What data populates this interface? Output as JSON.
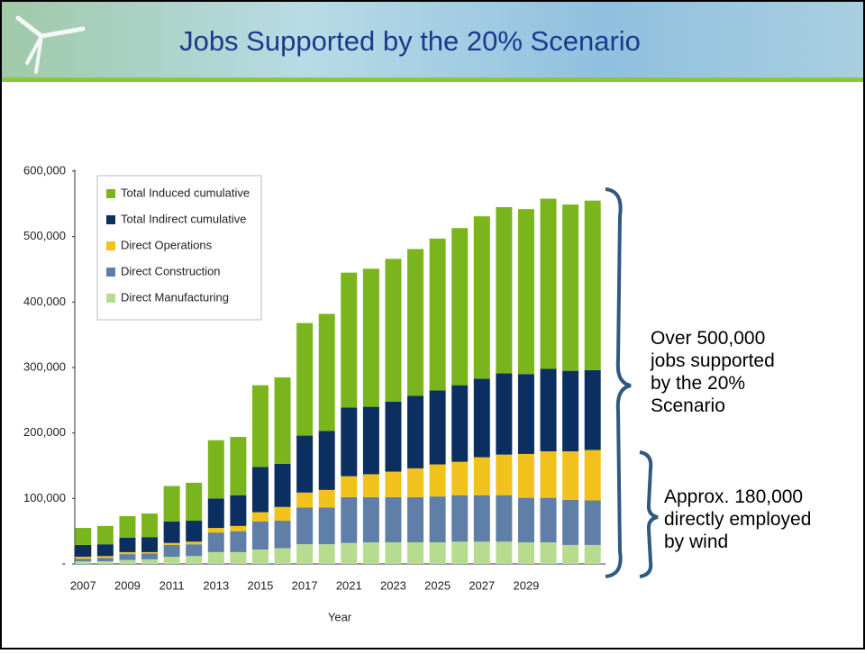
{
  "header": {
    "title": "Jobs Supported by the 20% Scenario"
  },
  "chart_data": {
    "type": "stacked-bar",
    "x_label": "Year",
    "categories": [
      "2007",
      null,
      "2009",
      null,
      "2011",
      null,
      "2013",
      null,
      "2015",
      null,
      "2017",
      null,
      "2021",
      null,
      "2023",
      null,
      "2025",
      null,
      "2027",
      null,
      "2029",
      null,
      null,
      null
    ],
    "series": [
      {
        "name": "Direct Manufacturing",
        "color": "#b7dc8f",
        "values": [
          4000,
          4000,
          6000,
          7000,
          11000,
          12000,
          18000,
          18000,
          22000,
          24000,
          30000,
          30000,
          32000,
          33000,
          33000,
          33000,
          33000,
          34000,
          34000,
          34000,
          33000,
          33000,
          29000,
          29000
        ]
      },
      {
        "name": "Direct Construction",
        "color": "#5f7fa8",
        "values": [
          4000,
          5000,
          9000,
          9000,
          18000,
          18000,
          30000,
          32000,
          43000,
          42000,
          56000,
          56000,
          70000,
          69000,
          69000,
          69000,
          70000,
          71000,
          71000,
          71000,
          68000,
          68000,
          69000,
          68000
        ]
      },
      {
        "name": "Direct Operations",
        "color": "#f1c21b",
        "values": [
          3000,
          3000,
          3000,
          2000,
          3000,
          4000,
          7000,
          8000,
          14000,
          21000,
          23000,
          27000,
          32000,
          35000,
          39000,
          44000,
          49000,
          51000,
          58000,
          62000,
          67000,
          71000,
          74000,
          77000
        ]
      },
      {
        "name": "Total Indirect cumulative",
        "color": "#0c2f62",
        "values": [
          18000,
          18000,
          22000,
          23000,
          33000,
          32000,
          45000,
          47000,
          69000,
          66000,
          87000,
          90000,
          105000,
          103000,
          107000,
          111000,
          113000,
          117000,
          120000,
          124000,
          122000,
          126000,
          123000,
          122000
        ]
      },
      {
        "name": "Total Induced cumulative",
        "color": "#7ab51d",
        "values": [
          26000,
          28000,
          33000,
          36000,
          54000,
          58000,
          89000,
          89000,
          125000,
          132000,
          172000,
          179000,
          206000,
          211000,
          218000,
          224000,
          232000,
          240000,
          248000,
          254000,
          252000,
          260000,
          254000,
          259000
        ]
      }
    ],
    "ylim": [
      0,
      600000
    ],
    "yticks": [
      {
        "value": 0,
        "label": "-"
      },
      {
        "value": 100000,
        "label": "100,000"
      },
      {
        "value": 200000,
        "label": "200,000"
      },
      {
        "value": 300000,
        "label": "300,000"
      },
      {
        "value": 400000,
        "label": "400,000"
      },
      {
        "value": 500000,
        "label": "500,000"
      },
      {
        "value": 600000,
        "label": "600,000"
      }
    ],
    "grid": false,
    "legend_position": "top-left",
    "annotations": [
      {
        "lines": [
          "Over 500,000",
          "jobs supported",
          "by the 20%",
          "Scenario"
        ]
      },
      {
        "lines": [
          "Approx. 180,000",
          "directly employed",
          "by wind"
        ]
      }
    ]
  }
}
